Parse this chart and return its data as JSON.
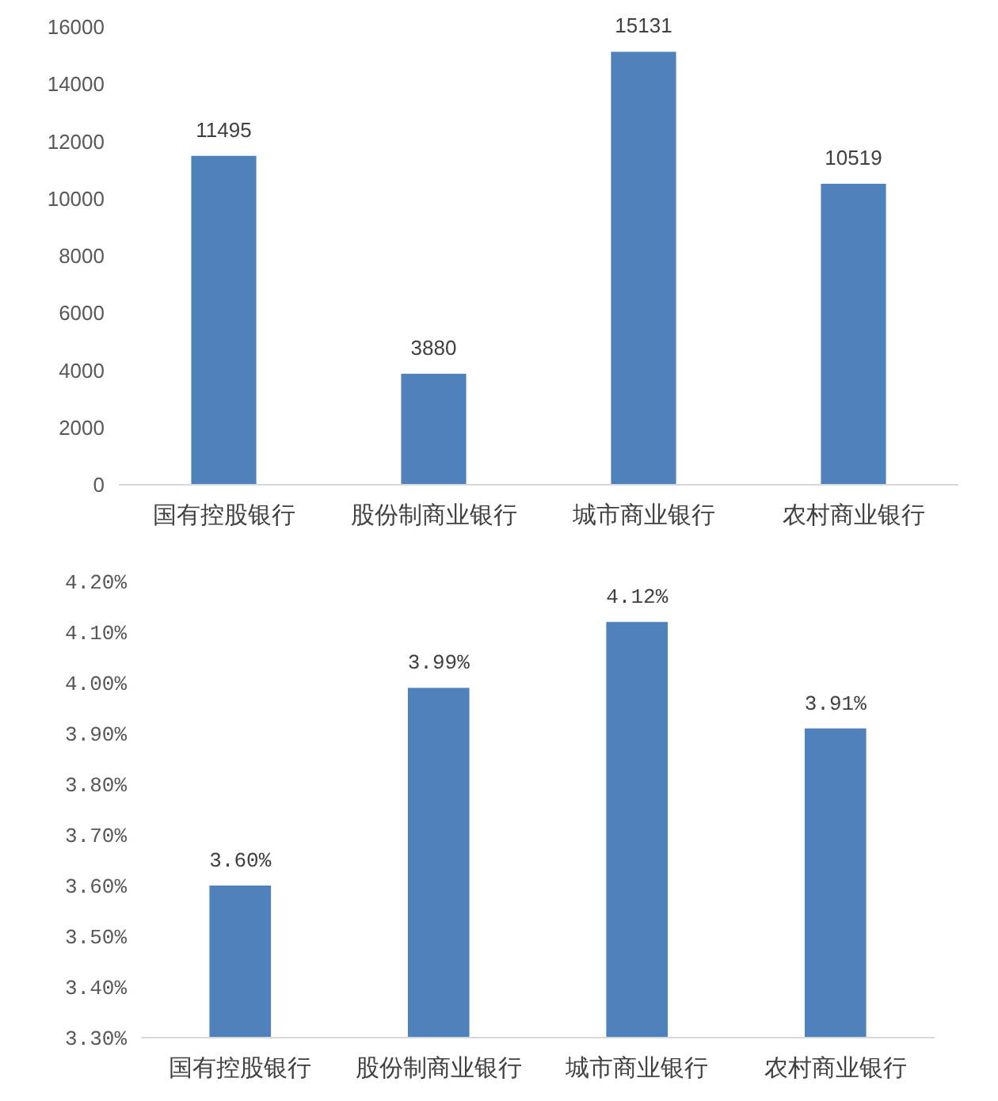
{
  "chart_data": [
    {
      "type": "bar",
      "categories": [
        "国有控股银行",
        "股份制商业银行",
        "城市商业银行",
        "农村商业银行"
      ],
      "values": [
        11495,
        3880,
        15131,
        10519
      ],
      "color": "#4f81bd",
      "ylim": [
        0,
        16000
      ],
      "yticks": [
        0,
        2000,
        4000,
        6000,
        8000,
        10000,
        12000,
        14000,
        16000
      ],
      "data_labels": true
    },
    {
      "type": "bar",
      "categories": [
        "国有控股银行",
        "股份制商业银行",
        "城市商业银行",
        "农村商业银行"
      ],
      "values": [
        3.6,
        3.99,
        4.12,
        3.91
      ],
      "value_labels": [
        "3.60%",
        "3.99%",
        "4.12%",
        "3.91%"
      ],
      "color": "#4f81bd",
      "ylim": [
        3.3,
        4.2
      ],
      "yticks": [
        {
          "value": 3.3,
          "label": "3.30%"
        },
        {
          "value": 3.4,
          "label": "3.40%"
        },
        {
          "value": 3.5,
          "label": "3.50%"
        },
        {
          "value": 3.6,
          "label": "3.60%"
        },
        {
          "value": 3.7,
          "label": "3.70%"
        },
        {
          "value": 3.8,
          "label": "3.80%"
        },
        {
          "value": 3.9,
          "label": "3.90%"
        },
        {
          "value": 4.0,
          "label": "4.00%"
        },
        {
          "value": 4.1,
          "label": "4.10%"
        },
        {
          "value": 4.2,
          "label": "4.20%"
        }
      ]
    }
  ]
}
